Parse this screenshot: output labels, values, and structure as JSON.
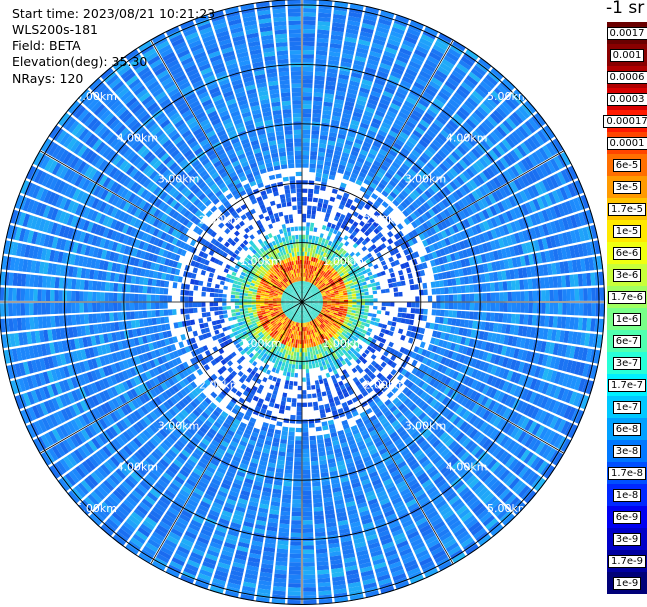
{
  "header": {
    "start_time": "Start time: 2023/08/21 10:21:23",
    "instrument": "WLS200s-181",
    "field": "Field: BETA",
    "elevation": "Elevation(deg): 35.30",
    "nrays": "NRays: 120"
  },
  "colorbar": {
    "unit": "-1 sr",
    "labels": [
      "0.0017",
      "0.001",
      "0.0006",
      "0.0003",
      "0.00017",
      "0.0001",
      "6e-5",
      "3e-5",
      "1.7e-5",
      "1e-5",
      "6e-6",
      "3e-6",
      "1.7e-6",
      "1e-6",
      "6e-7",
      "3e-7",
      "1.7e-7",
      "1e-7",
      "6e-8",
      "3e-8",
      "1.7e-8",
      "1e-8",
      "6e-9",
      "3e-9",
      "1.7e-9",
      "1e-9"
    ],
    "colors": [
      "#6a0000",
      "#8a0000",
      "#b00000",
      "#d80000",
      "#ff1a00",
      "#ff4500",
      "#ff6f00",
      "#ff9a00",
      "#ffc400",
      "#ffe800",
      "#f0ff10",
      "#c8ff3a",
      "#a0ff60",
      "#78ff88",
      "#50ffb0",
      "#28ffd8",
      "#00f0ff",
      "#00c8ff",
      "#00a0ff",
      "#0078ff",
      "#0050ff",
      "#0028ff",
      "#0000f0",
      "#0000c8",
      "#0000a0",
      "#000078"
    ]
  },
  "chart_data": {
    "type": "heatmap",
    "title": "",
    "field": "BETA",
    "elevation_deg": 35.3,
    "n_rays": 120,
    "range_rings_km": [
      1.0,
      2.0,
      3.0,
      4.0,
      5.0
    ],
    "ring_labels": [
      "1.00km",
      "2.00km",
      "3.00km",
      "4.00km",
      "5.00km"
    ],
    "description_values": {
      "near_range_peak": "1e-4 to 1e-5",
      "far_range_background": "1e-8 to 1e-7"
    }
  }
}
